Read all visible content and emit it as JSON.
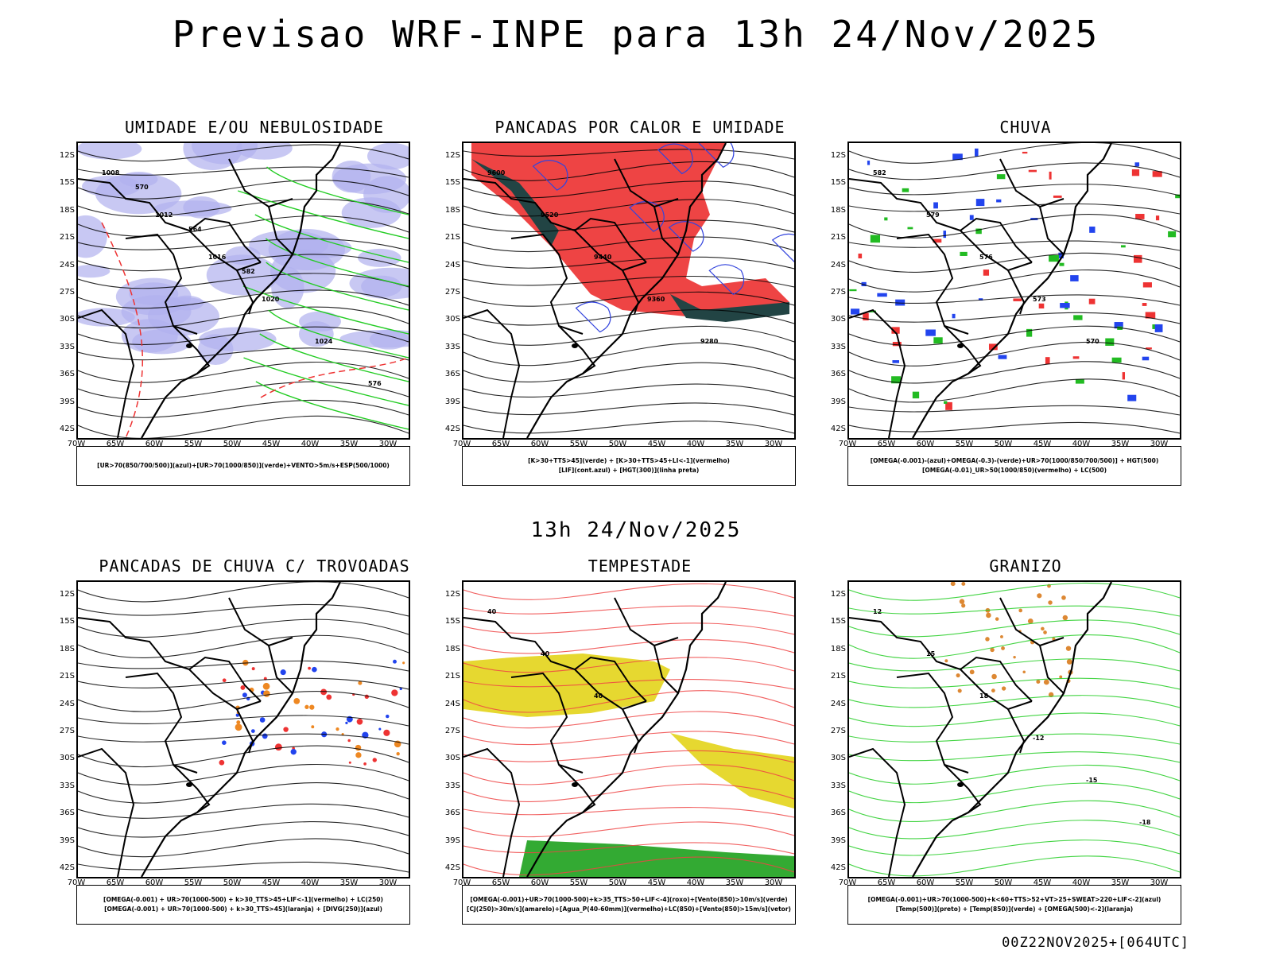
{
  "header": {
    "title": "Previsao WRF-INPE  para 13h 24/Nov/2025",
    "mid_date": "13h 24/Nov/2025",
    "run_stamp": "00Z22NOV2025+[064UTC]"
  },
  "axes": {
    "lat_labels": [
      "12S",
      "15S",
      "18S",
      "21S",
      "24S",
      "27S",
      "30S",
      "33S",
      "36S",
      "39S",
      "42S"
    ],
    "lon_labels": [
      "70W",
      "65W",
      "60W",
      "55W",
      "50W",
      "45W",
      "40W",
      "35W",
      "30W"
    ]
  },
  "panels": [
    {
      "title": "UMIDADE E/OU NEBULOSIDADE",
      "legend": [
        "[UR>70(850/700/500)](azul)+[UR>70(1000/850)](verde)+VENTO>5m/s+ESP(500/1000)"
      ],
      "contour_labels": [
        "1008",
        "1012",
        "1016",
        "1020",
        "1024",
        "576",
        "570",
        "564",
        "582"
      ],
      "colors": {
        "fill": "#b0b0ee",
        "contour": "#22cc22",
        "dashed": "#ee3333"
      }
    },
    {
      "title": "PANCADAS POR CALOR E UMIDADE",
      "legend": [
        "[K>30+TTS>45](verde) + [K>30+TTS>45+LI<-1](vermelho)",
        "[LIF](cont.azul) + [HGT(300)](linha preta)"
      ],
      "contour_labels": [
        "9600",
        "9520",
        "9440",
        "9360",
        "9280"
      ],
      "colors": {
        "fill": "#ee4444",
        "fill2": "#224444",
        "contour": "#3344dd"
      }
    },
    {
      "title": "CHUVA",
      "legend": [
        "[OMEGA(-0.001)-(azul)+OMEGA(-0.3)-(verde)+UR>70(1000/850/700/500)] + HGT(500)",
        "[OMEGA(-0.01)_UR>50(1000/850)(vermelho) + LC(500)"
      ],
      "contour_labels": [
        "582",
        "579",
        "576",
        "573",
        "570"
      ],
      "colors": {
        "fill": "#ee3333",
        "fill2": "#2244ee",
        "fill3": "#22bb22"
      }
    },
    {
      "title": "PANCADAS DE CHUVA C/ TROVOADAS",
      "legend": [
        "[OMEGA(-0.001) + UR>70(1000-500) + k>30_TTS>45+LIF<-1](vermelho) + LC(250)",
        "[OMEGA(-0.001) + UR>70(1000-500) + k>30_TTS>45](laranja) + [DIVG(250)](azul)"
      ],
      "contour_labels": [],
      "colors": {
        "fill": "#ee3333",
        "fill2": "#ee8822",
        "fill3": "#2244ee"
      }
    },
    {
      "title": "TEMPESTADE",
      "legend": [
        "[OMEGA(-0.001)+UR>70(1000-500)+k>35_TTS>50+LIF<-4](roxo)+[Vento(850)>10m/s](verde)",
        "[CJ(250)>30m/s](amarelo)+[Agua_P(40-60mm)](vermelho)+LC(850)+[Vento(850)>15m/s](vetor)"
      ],
      "contour_labels": [
        "40",
        "40",
        "40"
      ],
      "colors": {
        "fill": "#e6d830",
        "fill2": "#33aa33",
        "contour": "#ee4444"
      }
    },
    {
      "title": "GRANIZO",
      "legend": [
        "[OMEGA(-0.001)+UR>70(1000-500)+k<60+TTS>52+VT>25+SWEAT>220+LIF<-2](azul)",
        "[Temp(500)](preto) + [Temp(850)](verde) + [OMEGA(500)<-2](laranja)"
      ],
      "contour_labels": [
        "12",
        "15",
        "18",
        "-12",
        "-15",
        "-18"
      ],
      "colors": {
        "contour": "#22cc22",
        "fill": "#dd8833"
      }
    }
  ]
}
